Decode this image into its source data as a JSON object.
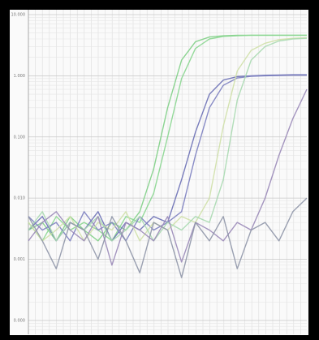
{
  "chart_data": {
    "type": "line",
    "log_y": true,
    "grid": true,
    "x": [
      0,
      2,
      4,
      6,
      8,
      10,
      12,
      14,
      16,
      18,
      20,
      22,
      24,
      26,
      28,
      30,
      32,
      34,
      36,
      38,
      40
    ],
    "xlim": [
      0,
      40
    ],
    "ylim": [
      6.3e-05,
      10
    ],
    "yticks": [
      {
        "value": 10,
        "label": "10.000"
      },
      {
        "value": 1,
        "label": "1.000"
      },
      {
        "value": 0.1,
        "label": "0.100"
      },
      {
        "value": 0.01,
        "label": "0.010"
      },
      {
        "value": 0.001,
        "label": "0.001"
      },
      {
        "value": 0.0001,
        "label": "0.000"
      }
    ],
    "series": [
      {
        "color": "#7fcf86",
        "values": [
          0.003,
          0.004,
          0.002,
          0.005,
          0.003,
          0.002,
          0.004,
          0.003,
          0.006,
          0.03,
          0.3,
          1.8,
          3.6,
          4.3,
          4.5,
          4.6,
          4.6,
          4.6,
          4.6,
          4.6,
          4.6
        ]
      },
      {
        "color": "#8ad690",
        "values": [
          0.004,
          0.002,
          0.005,
          0.003,
          0.004,
          0.003,
          0.002,
          0.005,
          0.004,
          0.012,
          0.1,
          0.9,
          2.8,
          4.0,
          4.4,
          4.5,
          4.6,
          4.6,
          4.6,
          4.6,
          4.6
        ]
      },
      {
        "color": "#6a6fb5",
        "values": [
          0.003,
          0.005,
          0.002,
          0.004,
          0.003,
          0.006,
          0.002,
          0.004,
          0.003,
          0.005,
          0.004,
          0.02,
          0.12,
          0.5,
          0.85,
          0.97,
          1.0,
          1.02,
          1.03,
          1.04,
          1.04
        ]
      },
      {
        "color": "#7c7fc0",
        "values": [
          0.005,
          0.003,
          0.004,
          0.002,
          0.006,
          0.003,
          0.004,
          0.002,
          0.005,
          0.003,
          0.004,
          0.006,
          0.05,
          0.3,
          0.7,
          0.92,
          0.98,
          1.0,
          1.01,
          1.02,
          1.02
        ]
      },
      {
        "color": "#cfe0a8",
        "values": [
          0.004,
          0.002,
          0.003,
          0.005,
          0.002,
          0.004,
          0.003,
          0.006,
          0.002,
          0.004,
          0.003,
          0.005,
          0.004,
          0.01,
          0.15,
          1.2,
          2.6,
          3.4,
          3.9,
          4.1,
          4.2
        ]
      },
      {
        "color": "#a9d9b0",
        "values": [
          0.003,
          0.006,
          0.002,
          0.004,
          0.003,
          0.005,
          0.002,
          0.003,
          0.005,
          0.002,
          0.004,
          0.003,
          0.005,
          0.004,
          0.02,
          0.4,
          1.8,
          3.0,
          3.7,
          4.0,
          4.1
        ]
      },
      {
        "color": "#9a8ab8",
        "values": [
          0.002,
          0.004,
          0.006,
          0.003,
          0.002,
          0.005,
          0.0008,
          0.004,
          0.003,
          0.002,
          0.005,
          0.0009,
          0.004,
          0.003,
          0.002,
          0.004,
          0.003,
          0.01,
          0.05,
          0.2,
          0.6
        ]
      },
      {
        "color": "#8f96a8",
        "values": [
          0.005,
          0.002,
          0.0007,
          0.004,
          0.003,
          0.001,
          0.005,
          0.002,
          0.0006,
          0.004,
          0.003,
          0.0005,
          0.004,
          0.002,
          0.005,
          0.0007,
          0.003,
          0.004,
          0.002,
          0.006,
          0.01
        ]
      }
    ]
  }
}
